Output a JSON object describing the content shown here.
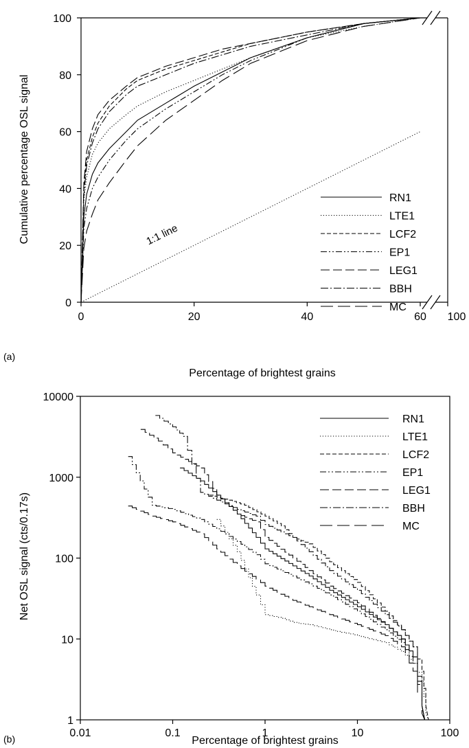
{
  "chart_data": [
    {
      "id": "a",
      "type": "line",
      "panel_label": "(a)",
      "title": "",
      "xlabel": "Percentage of brightest grains",
      "ylabel": "Cumulative percentage OSL signal",
      "xlim": [
        0,
        60
      ],
      "ylim": [
        0,
        100
      ],
      "x_axis_break": "after 60, resumes at 100",
      "xticks": [
        "0",
        "20",
        "40",
        "60",
        "100"
      ],
      "yticks": [
        "0",
        "20",
        "40",
        "60",
        "80",
        "100"
      ],
      "grid": false,
      "legend_position": "bottom-right",
      "annotation": "1:1 line",
      "reference_line": {
        "x": [
          0,
          60
        ],
        "y": [
          0,
          60
        ],
        "style": "dotted"
      },
      "series": [
        {
          "name": "RN1",
          "style": "solid",
          "x": [
            0,
            0.5,
            1,
            2,
            3,
            5,
            8,
            10,
            15,
            20,
            25,
            30,
            40,
            50,
            60
          ],
          "y": [
            0,
            30,
            38,
            45,
            49,
            54,
            60,
            64,
            70,
            76,
            81,
            86,
            93,
            98,
            100
          ]
        },
        {
          "name": "LTE1",
          "style": "dotted",
          "x": [
            0,
            0.5,
            1,
            2,
            3,
            5,
            8,
            10,
            15,
            20,
            25,
            30,
            40,
            50,
            60
          ],
          "y": [
            0,
            36,
            44,
            52,
            56,
            61,
            66,
            69,
            74,
            78,
            82,
            86,
            93,
            97,
            100
          ]
        },
        {
          "name": "LCF2",
          "style": "dashed",
          "x": [
            0,
            0.5,
            1,
            2,
            3,
            5,
            8,
            10,
            15,
            20,
            25,
            30,
            40,
            50,
            60
          ],
          "y": [
            0,
            40,
            50,
            58,
            63,
            69,
            75,
            78,
            82,
            85,
            88,
            91,
            95,
            98,
            100
          ]
        },
        {
          "name": "EP1",
          "style": "dashdotdot",
          "x": [
            0,
            0.5,
            1,
            2,
            3,
            5,
            8,
            10,
            15,
            20,
            25,
            30,
            40,
            50,
            60
          ],
          "y": [
            0,
            26,
            33,
            40,
            44,
            50,
            57,
            61,
            68,
            74,
            80,
            85,
            93,
            98,
            100
          ]
        },
        {
          "name": "LEG1",
          "style": "longdash",
          "x": [
            0,
            0.5,
            1,
            2,
            3,
            5,
            8,
            10,
            15,
            20,
            25,
            30,
            40,
            50,
            60
          ],
          "y": [
            0,
            42,
            53,
            61,
            66,
            71,
            76,
            79,
            83,
            86,
            89,
            91,
            95,
            98,
            100
          ]
        },
        {
          "name": "BBH",
          "style": "dashdot",
          "x": [
            0,
            0.5,
            1,
            2,
            3,
            5,
            8,
            10,
            15,
            20,
            25,
            30,
            40,
            50,
            60
          ],
          "y": [
            0,
            38,
            48,
            56,
            61,
            67,
            73,
            76,
            80,
            84,
            87,
            90,
            94,
            98,
            100
          ]
        },
        {
          "name": "MC",
          "style": "longdash2",
          "x": [
            0,
            0.5,
            1,
            2,
            3,
            5,
            8,
            10,
            15,
            20,
            25,
            30,
            40,
            50,
            60
          ],
          "y": [
            0,
            19,
            25,
            31,
            36,
            42,
            50,
            55,
            64,
            71,
            78,
            84,
            92,
            97,
            100
          ]
        }
      ]
    },
    {
      "id": "b",
      "type": "line",
      "panel_label": "(b)",
      "title": "",
      "xlabel": "Percentage of brightest grains",
      "ylabel": "Net OSL signal (cts/0.17s)",
      "xscale": "log",
      "yscale": "log",
      "xlim": [
        0.01,
        100
      ],
      "ylim": [
        1,
        10000
      ],
      "xticks": [
        "0.01",
        "0.1",
        "1",
        "10",
        "100"
      ],
      "yticks": [
        "1",
        "10",
        "100",
        "1000",
        "10000"
      ],
      "grid": false,
      "legend_position": "top-right",
      "series": [
        {
          "name": "RN1",
          "style": "solid",
          "x": [
            0.12,
            0.2,
            0.3,
            0.5,
            0.8,
            1,
            2,
            3,
            5,
            10,
            20,
            30,
            40,
            50
          ],
          "y": [
            1300,
            900,
            600,
            350,
            180,
            130,
            80,
            60,
            40,
            25,
            15,
            10,
            6,
            1.5
          ]
        },
        {
          "name": "LTE1",
          "style": "dotted",
          "x": [
            0.3,
            0.5,
            0.8,
            1,
            1.5,
            2,
            3,
            5,
            10,
            20,
            30,
            40,
            50,
            55
          ],
          "y": [
            300,
            120,
            35,
            20,
            18,
            16,
            15,
            13,
            11,
            9,
            7,
            5,
            3,
            1.2
          ]
        },
        {
          "name": "LCF2",
          "style": "dashed",
          "x": [
            0.25,
            0.4,
            0.6,
            1,
            1.5,
            2,
            3,
            5,
            10,
            20,
            30,
            40,
            50,
            55
          ],
          "y": [
            600,
            520,
            450,
            330,
            250,
            180,
            150,
            90,
            50,
            22,
            13,
            8,
            4,
            1.5
          ]
        },
        {
          "name": "EP1",
          "style": "dashdotdot",
          "x": [
            0.033,
            0.06,
            0.1,
            0.2,
            0.3,
            0.5,
            0.8,
            1,
            2,
            3,
            5,
            10,
            20,
            30,
            40,
            50
          ],
          "y": [
            1800,
            450,
            400,
            300,
            230,
            160,
            110,
            85,
            60,
            48,
            35,
            22,
            13,
            9,
            5,
            1.5
          ]
        },
        {
          "name": "LEG1",
          "style": "longdash",
          "x": [
            0.045,
            0.07,
            0.1,
            0.2,
            0.3,
            0.5,
            0.8,
            1,
            2,
            3,
            5,
            10,
            20,
            30,
            40,
            50
          ],
          "y": [
            3900,
            2800,
            2000,
            1300,
            600,
            350,
            280,
            180,
            100,
            70,
            45,
            28,
            15,
            10,
            6,
            1.5
          ]
        },
        {
          "name": "BBH",
          "style": "dashdot",
          "x": [
            0.065,
            0.1,
            0.13,
            0.2,
            0.3,
            0.5,
            0.8,
            1,
            2,
            3,
            5,
            10,
            20,
            30,
            40,
            50
          ],
          "y": [
            5800,
            4200,
            3200,
            650,
            520,
            400,
            330,
            260,
            180,
            120,
            70,
            40,
            20,
            13,
            8,
            1.5
          ]
        },
        {
          "name": "MC",
          "style": "longdash2",
          "x": [
            0.033,
            0.06,
            0.1,
            0.2,
            0.3,
            0.5,
            0.8,
            1,
            2,
            3,
            5,
            10,
            20,
            30,
            40,
            50
          ],
          "y": [
            440,
            330,
            280,
            200,
            130,
            80,
            55,
            45,
            30,
            25,
            20,
            15,
            11,
            8,
            4,
            1.2
          ]
        }
      ]
    }
  ]
}
